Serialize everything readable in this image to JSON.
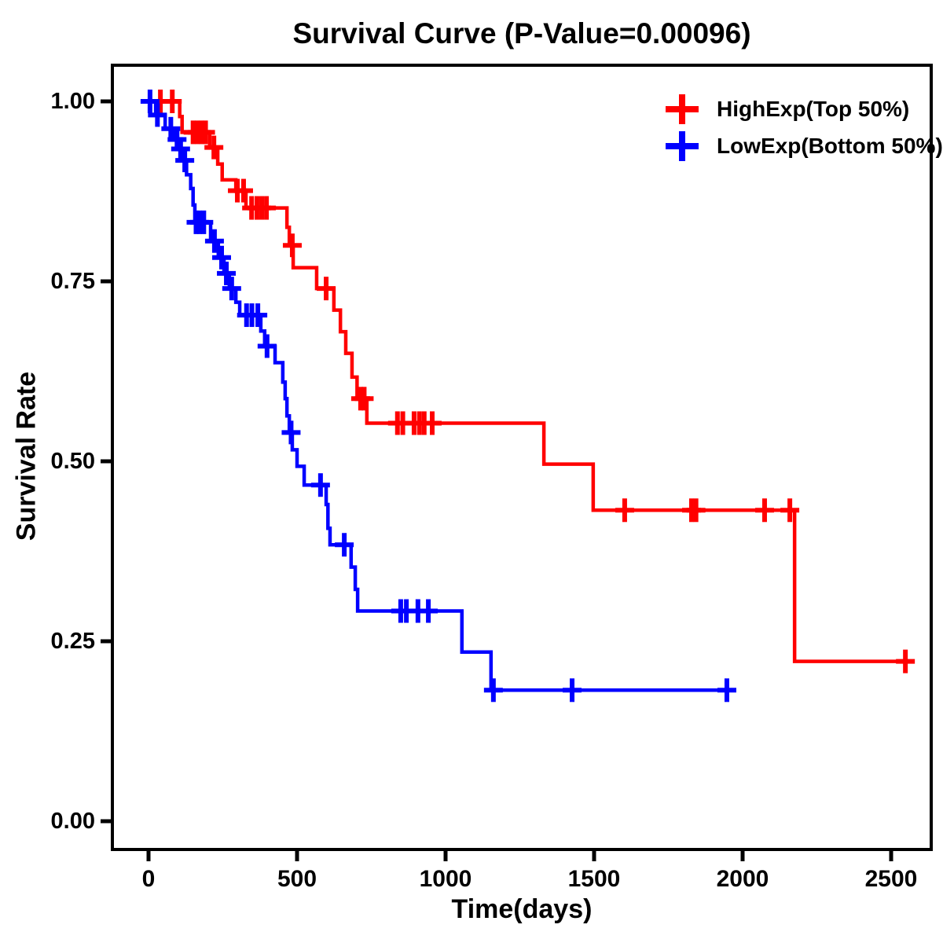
{
  "chart_data": {
    "type": "line",
    "subtype": "kaplan-meier-step-survival",
    "title": "Survival Curve (P-Value=0.00096)",
    "xlabel": "Time(days)",
    "ylabel": "Survival Rate",
    "xticks": [
      0,
      500,
      1000,
      1500,
      2000,
      2500
    ],
    "ytick_labels": [
      "1.00",
      "0.75",
      "0.50",
      "0.25",
      "0.00"
    ],
    "ytick_values": [
      1.0,
      0.75,
      0.5,
      0.25,
      0.0
    ],
    "xlim": [
      -120,
      2635
    ],
    "ylim": [
      -0.04,
      1.05
    ],
    "grid": false,
    "legend_position": "top-right",
    "axis_color": "#000000",
    "series": [
      {
        "name": "HighExp(Top 50%)",
        "color": "#FF0000",
        "end_time": 2577,
        "points": [
          [
            0,
            1.0
          ],
          [
            105,
            0.979
          ],
          [
            113,
            0.957
          ],
          [
            206,
            0.936
          ],
          [
            233,
            0.913
          ],
          [
            248,
            0.891
          ],
          [
            294,
            0.876
          ],
          [
            328,
            0.852
          ],
          [
            466,
            0.825
          ],
          [
            474,
            0.8
          ],
          [
            487,
            0.769
          ],
          [
            566,
            0.74
          ],
          [
            624,
            0.71
          ],
          [
            646,
            0.68
          ],
          [
            664,
            0.65
          ],
          [
            685,
            0.617
          ],
          [
            702,
            0.587
          ],
          [
            735,
            0.553
          ],
          [
            1331,
            0.496
          ],
          [
            1497,
            0.432
          ],
          [
            2175,
            0.222
          ]
        ],
        "censors": [
          [
            40,
            1.0
          ],
          [
            80,
            1.0
          ],
          [
            150,
            0.957
          ],
          [
            164,
            0.957
          ],
          [
            178,
            0.957
          ],
          [
            192,
            0.957
          ],
          [
            220,
            0.936
          ],
          [
            299,
            0.876
          ],
          [
            320,
            0.876
          ],
          [
            347,
            0.852
          ],
          [
            365,
            0.852
          ],
          [
            381,
            0.852
          ],
          [
            397,
            0.852
          ],
          [
            484,
            0.8
          ],
          [
            598,
            0.74
          ],
          [
            714,
            0.587
          ],
          [
            726,
            0.587
          ],
          [
            838,
            0.553
          ],
          [
            856,
            0.553
          ],
          [
            894,
            0.553
          ],
          [
            912,
            0.553
          ],
          [
            928,
            0.553
          ],
          [
            955,
            0.553
          ],
          [
            1603,
            0.432
          ],
          [
            1828,
            0.432
          ],
          [
            1843,
            0.432
          ],
          [
            2074,
            0.432
          ],
          [
            2159,
            0.432
          ],
          [
            2548,
            0.222
          ]
        ]
      },
      {
        "name": "LowExp(Bottom 50%)",
        "color": "#0000FF",
        "end_time": 1960,
        "points": [
          [
            0,
            1.0
          ],
          [
            24,
            0.981
          ],
          [
            56,
            0.962
          ],
          [
            88,
            0.947
          ],
          [
            104,
            0.934
          ],
          [
            116,
            0.918
          ],
          [
            128,
            0.898
          ],
          [
            142,
            0.879
          ],
          [
            150,
            0.856
          ],
          [
            156,
            0.832
          ],
          [
            209,
            0.806
          ],
          [
            235,
            0.783
          ],
          [
            254,
            0.761
          ],
          [
            272,
            0.74
          ],
          [
            294,
            0.721
          ],
          [
            307,
            0.703
          ],
          [
            378,
            0.681
          ],
          [
            391,
            0.66
          ],
          [
            426,
            0.637
          ],
          [
            452,
            0.61
          ],
          [
            460,
            0.587
          ],
          [
            466,
            0.563
          ],
          [
            474,
            0.54
          ],
          [
            484,
            0.516
          ],
          [
            500,
            0.493
          ],
          [
            524,
            0.467
          ],
          [
            598,
            0.44
          ],
          [
            604,
            0.407
          ],
          [
            611,
            0.384
          ],
          [
            682,
            0.353
          ],
          [
            696,
            0.322
          ],
          [
            704,
            0.292
          ],
          [
            1055,
            0.235
          ],
          [
            1153,
            0.182
          ]
        ],
        "censors": [
          [
            5,
            1.0
          ],
          [
            30,
            0.981
          ],
          [
            75,
            0.962
          ],
          [
            96,
            0.947
          ],
          [
            108,
            0.934
          ],
          [
            122,
            0.918
          ],
          [
            160,
            0.832
          ],
          [
            172,
            0.832
          ],
          [
            186,
            0.832
          ],
          [
            222,
            0.806
          ],
          [
            246,
            0.783
          ],
          [
            262,
            0.761
          ],
          [
            280,
            0.74
          ],
          [
            330,
            0.703
          ],
          [
            348,
            0.703
          ],
          [
            368,
            0.703
          ],
          [
            399,
            0.66
          ],
          [
            480,
            0.54
          ],
          [
            579,
            0.467
          ],
          [
            659,
            0.384
          ],
          [
            849,
            0.292
          ],
          [
            868,
            0.292
          ],
          [
            907,
            0.292
          ],
          [
            942,
            0.292
          ],
          [
            1161,
            0.182
          ],
          [
            1426,
            0.182
          ],
          [
            1947,
            0.182
          ]
        ]
      }
    ]
  }
}
